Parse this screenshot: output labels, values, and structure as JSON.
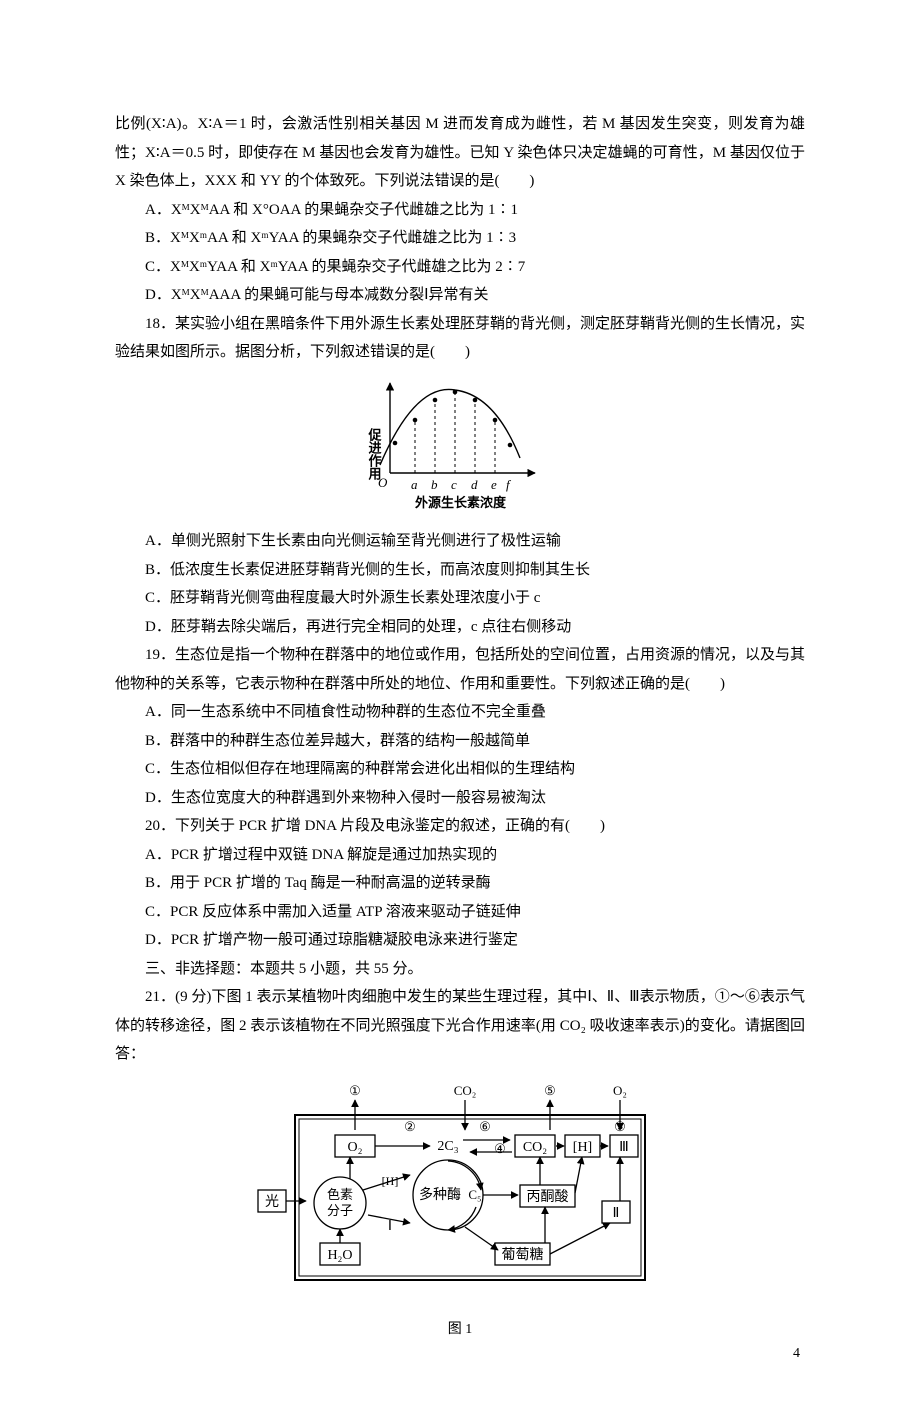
{
  "intro_lines": [
    "比例(X∶A)。X∶A＝1 时，会激活性别相关基因 M 进而发育成为雌性，若 M 基因发生突变，则发育为雄性；X∶A＝0.5 时，即使存在 M 基因也会发育为雄性。已知 Y 染色体只决定雄蝇的可育性，M 基因仅位于 X 染色体上，XXX 和 YY 的个体致死。下列说法错误的是(　　)"
  ],
  "q17_opts": {
    "A": "A．XᴹXᴹAA 和 X°OAA 的果蝇杂交子代雌雄之比为 1∶1",
    "B": "B．XᴹXᵐAA 和 XᵐYAA 的果蝇杂交子代雌雄之比为 1∶3",
    "C": "C．XᴹXᵐYAA 和 XᵐYAA 的果蝇杂交子代雌雄之比为 2∶7",
    "D": "D．XᴹXᴹAAA 的果蝇可能与母本减数分裂Ⅰ异常有关"
  },
  "q18_stem": "18．某实验小组在黑暗条件下用外源生长素处理胚芽鞘的背光侧，测定胚芽鞘背光侧的生长情况，实验结果如图所示。据图分析，下列叙述错误的是(　　)",
  "chart18": {
    "type": "line",
    "ylabel": "促进作用",
    "xlabel": "外源生长素浓度",
    "origin": "O",
    "xticks": [
      "a",
      "b",
      "c",
      "d",
      "e",
      "f"
    ],
    "xtick_xpos": [
      55,
      75,
      95,
      115,
      135,
      150
    ],
    "curve_pts": [
      [
        20,
        92
      ],
      [
        35,
        70
      ],
      [
        55,
        45
      ],
      [
        75,
        25
      ],
      [
        95,
        17
      ],
      [
        115,
        25
      ],
      [
        135,
        45
      ],
      [
        160,
        85
      ]
    ],
    "dash_tops": {
      "a": 47,
      "b": 27,
      "c": 19,
      "d": 27,
      "e": 47
    },
    "axis_color": "#000000",
    "curve_color": "#000000",
    "point_radius": 2.3,
    "stroke_width": 1.4,
    "font_size_label": 13,
    "font_size_tick": 13
  },
  "q18_opts": {
    "A": "A．单侧光照射下生长素由向光侧运输至背光侧进行了极性运输",
    "B": "B．低浓度生长素促进胚芽鞘背光侧的生长，而高浓度则抑制其生长",
    "C": "C．胚芽鞘背光侧弯曲程度最大时外源生长素处理浓度小于 c",
    "D": "D．胚芽鞘去除尖端后，再进行完全相同的处理，c 点往右侧移动"
  },
  "q19_stem": "19．生态位是指一个物种在群落中的地位或作用，包括所处的空间位置，占用资源的情况，以及与其他物种的关系等，它表示物种在群落中所处的地位、作用和重要性。下列叙述正确的是(　　)",
  "q19_opts": {
    "A": "A．同一生态系统中不同植食性动物种群的生态位不完全重叠",
    "B": "B．群落中的种群生态位差异越大，群落的结构一般越简单",
    "C": "C．生态位相似但存在地理隔离的种群常会进化出相似的生理结构",
    "D": "D．生态位宽度大的种群遇到外来物种入侵时一般容易被淘汰"
  },
  "q20_stem": "20．下列关于 PCR 扩增 DNA 片段及电泳鉴定的叙述，正确的有(　　)",
  "q20_opts": {
    "A": "A．PCR 扩增过程中双链 DNA 解旋是通过加热实现的",
    "B": "B．用于 PCR 扩增的 Taq 酶是一种耐高温的逆转录酶",
    "C": "C．PCR 反应体系中需加入适量 ATP 溶液来驱动子链延伸",
    "D": "D．PCR 扩增产物一般可通过琼脂糖凝胶电泳来进行鉴定"
  },
  "section3": "三、非选择题：本题共 5 小题，共 55 分。",
  "q21_stem": "21．(9 分)下图 1 表示某植物叶肉细胞中发生的某些生理过程，其中Ⅰ、Ⅱ、Ⅲ表示物质，①～⑥表示气体的转移途径，图 2 表示该植物在不同光照强度下光合作用速率(用 CO₂ 吸收速率表示)的变化。请据图回答：",
  "diagram21": {
    "type": "flowchart",
    "outer_stroke": "#000000",
    "outer_stroke_width": 2,
    "inner_stroke_width": 1.3,
    "font_size_box": 14,
    "font_size_small": 13,
    "caption": "图 1",
    "top_labels": {
      "n1": "①",
      "co2": "CO₂",
      "n5": "⑤",
      "o2": "O₂"
    },
    "arrow_labels": {
      "n2": "②",
      "n6": "⑥",
      "n4": "④",
      "n3": "③"
    },
    "boxes": {
      "o2box": "O₂",
      "c3": "2C₃",
      "co2box": "CO₂",
      "hbox": "[H]",
      "III": "Ⅲ",
      "light": "光",
      "pigment1": "色素",
      "pigment2": "分子",
      "enzyme": "多种酶",
      "c5": "C₅",
      "pyruvate": "丙酮酸",
      "II": "Ⅱ",
      "h2o": "H₂O",
      "glucose": "葡萄糖",
      "I": "Ⅰ",
      "h_mid": "[H]"
    }
  },
  "pagenum": "4"
}
